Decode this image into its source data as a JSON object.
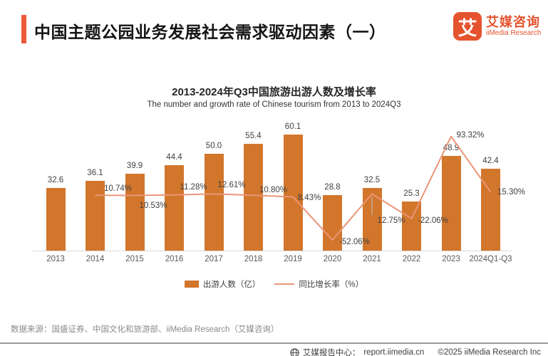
{
  "page": {
    "title": "中国主题公园业务发展社会需求驱动因素（一）"
  },
  "logo": {
    "icon_char": "艾",
    "name_cn": "艾媒咨询",
    "name_en": "iiMedia Research"
  },
  "chart_data": {
    "type": "combo-bar-line",
    "title": "2013-2024年Q3中国旅游出游人数及增长率",
    "subtitle": "The number and growth rate of Chinese tourism from 2013 to 2024Q3",
    "categories": [
      "2013",
      "2014",
      "2015",
      "2016",
      "2017",
      "2018",
      "2019",
      "2020",
      "2021",
      "2022",
      "2023",
      "2024Q1-Q3"
    ],
    "series": [
      {
        "name": "出游人数（亿）",
        "type": "bar",
        "color": "#D2762C",
        "values": [
          32.6,
          36.1,
          39.9,
          44.4,
          50.0,
          55.4,
          60.1,
          28.8,
          32.5,
          25.3,
          48.9,
          42.4
        ],
        "labels": [
          "32.6",
          "36.1",
          "39.9",
          "44.4",
          "50.0",
          "55.4",
          "60.1",
          "28.8",
          "32.5",
          "25.3",
          "48.9",
          "42.4"
        ]
      },
      {
        "name": "同比增长率（%）",
        "type": "line",
        "color": "#E99676",
        "values": [
          null,
          10.74,
          10.53,
          11.28,
          12.61,
          10.8,
          8.43,
          -52.06,
          12.75,
          -22.06,
          93.32,
          15.3
        ],
        "labels": [
          "",
          "10.74%",
          "10.53%",
          "11.28%",
          "12.61%",
          "10.80%",
          "8.43%",
          "-52.06%",
          "12.75%",
          "-22.06%",
          "93.32%",
          "15.30%"
        ],
        "label_offsets": [
          null,
          [
            32,
            -9
          ],
          [
            26,
            15
          ],
          [
            27,
            -11
          ],
          [
            25,
            -12
          ],
          [
            28,
            -7
          ],
          [
            23,
            1
          ],
          [
            31,
            3
          ],
          [
            27,
            38
          ],
          [
            30,
            3
          ],
          [
            27,
            -2
          ],
          [
            29,
            0
          ]
        ]
      }
    ],
    "legend_position": "bottom-center",
    "grid": false,
    "ylim_bars": [
      0,
      60.1
    ],
    "ylim_line_pct": [
      -52.06,
      93.32
    ]
  },
  "source_note": "数据来源：国盛证券、中国文化和旅游部、iiMedia Research（艾媒咨询）",
  "footer": {
    "report_center_label": "艾媒报告中心：",
    "url": "report.iimedia.cn",
    "copyright": "©2025  iiMedia Research Inc"
  }
}
